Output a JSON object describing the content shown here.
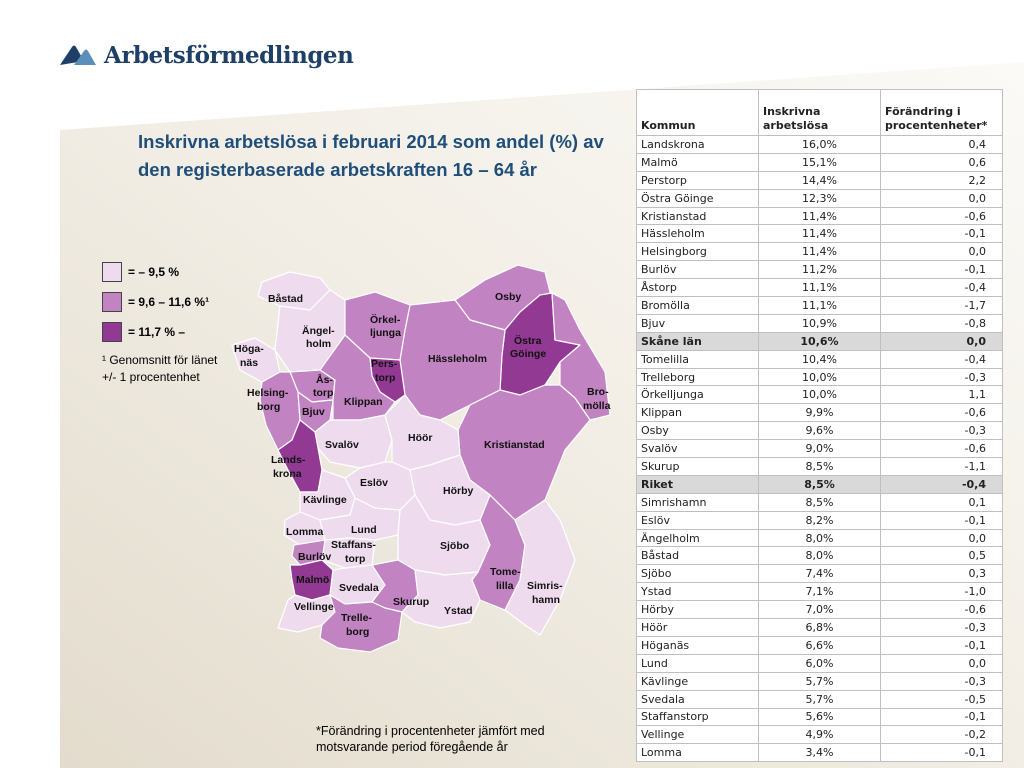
{
  "brand": {
    "name": "Arbetsförmedlingen"
  },
  "title": "Inskrivna arbetslösa i februari 2014 som andel (%) av den registerbaserade arbetskraften 16 – 64 år",
  "colors": {
    "low": "#eedcee",
    "mid": "#c183c1",
    "high": "#923a93",
    "title": "#1f4e7a"
  },
  "legend": {
    "items": [
      {
        "label": "=       – 9,5 %",
        "class": "low"
      },
      {
        "label": "= 9,6 – 11,6 %¹",
        "class": "mid"
      },
      {
        "label": "= 11,7 % –",
        "class": "high"
      }
    ],
    "note_line1": "¹ Genomsnitt för länet",
    "note_line2": "+/- 1 procentenhet"
  },
  "map_labels": {
    "bastad": "Båstad",
    "angel1": "Ängel-",
    "angel2": "holm",
    "orkel1": "Örkel-",
    "orkel2": "ljunga",
    "osby": "Osby",
    "ostra1": "Östra",
    "ostra2": "Göinge",
    "hoga1": "Höga-",
    "hoga2": "näs",
    "pers1": "Pers-",
    "pers2": "torp",
    "hassleholm": "Hässleholm",
    "as1": "Ås-",
    "as2": "torp",
    "helsing1": "Helsing-",
    "helsing2": "borg",
    "bjuv": "Bjuv",
    "klippan": "Klippan",
    "bro1": "Bro-",
    "bro2": "mölla",
    "svalov": "Svalöv",
    "hoor": "Höör",
    "kristianstad": "Kristianstad",
    "lands1": "Lands-",
    "lands2": "krona",
    "eslov": "Eslöv",
    "horby": "Hörby",
    "kavlinge": "Kävlinge",
    "lomma": "Lomma",
    "lund": "Lund",
    "staff1": "Staffans-",
    "staff2": "torp",
    "sjobo": "Sjöbo",
    "burlov": "Burlöv",
    "tome1": "Tome-",
    "tome2": "lilla",
    "simris1": "Simris-",
    "simris2": "hamn",
    "malmo": "Malmö",
    "svedala": "Svedala",
    "skurup": "Skurup",
    "ystad": "Ystad",
    "vellinge": "Vellinge",
    "trelle1": "Trelle-",
    "trelle2": "borg"
  },
  "footnote": {
    "line1": "*Förändring i procentenheter jämfört med",
    "line2": "motsvarande period föregående år"
  },
  "chart_data": {
    "type": "table",
    "columns": [
      "Kommun",
      "Inskrivna arbetslösa",
      "Förändring i procentenheter*"
    ],
    "rows": [
      {
        "kommun": "Landskrona",
        "andel": "16,0%",
        "forandring": "0,4"
      },
      {
        "kommun": "Malmö",
        "andel": "15,1%",
        "forandring": "0,6"
      },
      {
        "kommun": "Perstorp",
        "andel": "14,4%",
        "forandring": "2,2"
      },
      {
        "kommun": "Östra Göinge",
        "andel": "12,3%",
        "forandring": "0,0"
      },
      {
        "kommun": "Kristianstad",
        "andel": "11,4%",
        "forandring": "-0,6"
      },
      {
        "kommun": "Hässleholm",
        "andel": "11,4%",
        "forandring": "-0,1"
      },
      {
        "kommun": "Helsingborg",
        "andel": "11,4%",
        "forandring": "0,0"
      },
      {
        "kommun": "Burlöv",
        "andel": "11,2%",
        "forandring": "-0,1"
      },
      {
        "kommun": "Åstorp",
        "andel": "11,1%",
        "forandring": "-0,4"
      },
      {
        "kommun": "Bromölla",
        "andel": "11,1%",
        "forandring": "-1,7"
      },
      {
        "kommun": "Bjuv",
        "andel": "10,9%",
        "forandring": "-0,8"
      },
      {
        "kommun": "Skåne län",
        "andel": "10,6%",
        "forandring": "0,0",
        "highlight": true
      },
      {
        "kommun": "Tomelilla",
        "andel": "10,4%",
        "forandring": "-0,4"
      },
      {
        "kommun": "Trelleborg",
        "andel": "10,0%",
        "forandring": "-0,3"
      },
      {
        "kommun": "Örkelljunga",
        "andel": "10,0%",
        "forandring": "1,1"
      },
      {
        "kommun": "Klippan",
        "andel": "9,9%",
        "forandring": "-0,6"
      },
      {
        "kommun": "Osby",
        "andel": "9,6%",
        "forandring": "-0,3"
      },
      {
        "kommun": "Svalöv",
        "andel": "9,0%",
        "forandring": "-0,6"
      },
      {
        "kommun": "Skurup",
        "andel": "8,5%",
        "forandring": "-1,1"
      },
      {
        "kommun": "Riket",
        "andel": "8,5%",
        "forandring": "-0,4",
        "highlight": true
      },
      {
        "kommun": "Simrishamn",
        "andel": "8,5%",
        "forandring": "0,1"
      },
      {
        "kommun": "Eslöv",
        "andel": "8,2%",
        "forandring": "-0,1"
      },
      {
        "kommun": "Ängelholm",
        "andel": "8,0%",
        "forandring": "0,0"
      },
      {
        "kommun": "Båstad",
        "andel": "8,0%",
        "forandring": "0,5"
      },
      {
        "kommun": "Sjöbo",
        "andel": "7,4%",
        "forandring": "0,3"
      },
      {
        "kommun": "Ystad",
        "andel": "7,1%",
        "forandring": "-1,0"
      },
      {
        "kommun": "Hörby",
        "andel": "7,0%",
        "forandring": "-0,6"
      },
      {
        "kommun": "Höör",
        "andel": "6,8%",
        "forandring": "-0,3"
      },
      {
        "kommun": "Höganäs",
        "andel": "6,6%",
        "forandring": "-0,1"
      },
      {
        "kommun": "Lund",
        "andel": "6,0%",
        "forandring": "0,0"
      },
      {
        "kommun": "Kävlinge",
        "andel": "5,7%",
        "forandring": "-0,3"
      },
      {
        "kommun": "Svedala",
        "andel": "5,7%",
        "forandring": "-0,5"
      },
      {
        "kommun": "Staffanstorp",
        "andel": "5,6%",
        "forandring": "-0,1"
      },
      {
        "kommun": "Vellinge",
        "andel": "4,9%",
        "forandring": "-0,2"
      },
      {
        "kommun": "Lomma",
        "andel": "3,4%",
        "forandring": "-0,1"
      }
    ]
  }
}
